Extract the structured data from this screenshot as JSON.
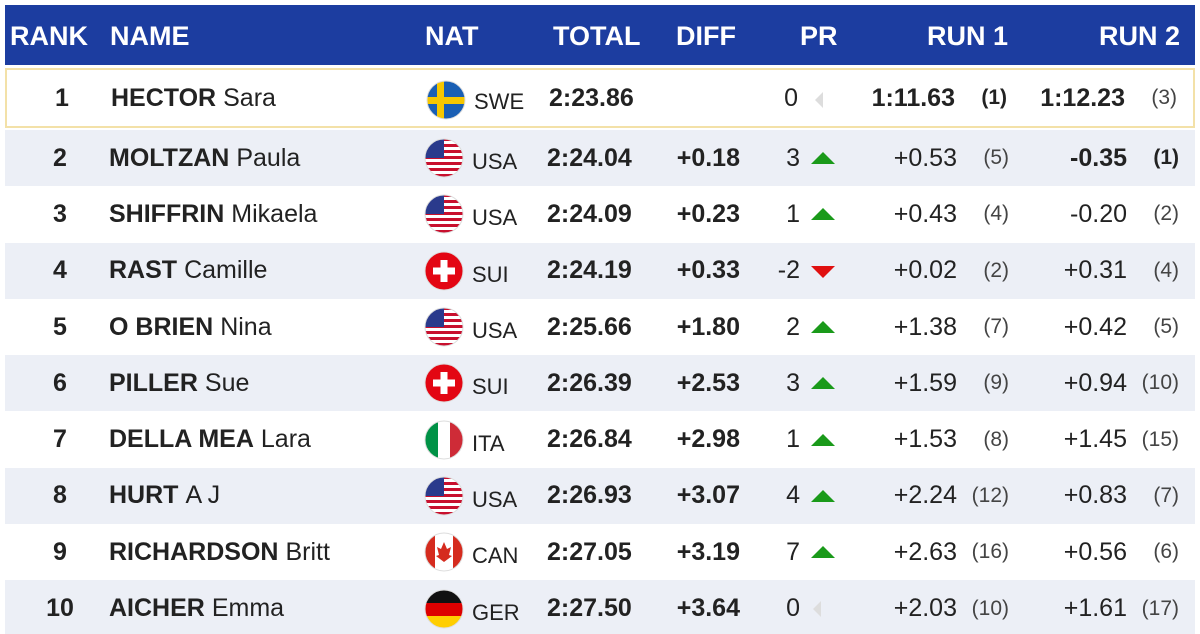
{
  "header": [
    "RANK",
    "NAME",
    "NAT",
    "TOTAL",
    "DIFF",
    "PR",
    "RUN 1",
    "RUN 2"
  ],
  "rows": [
    {
      "rank": 1,
      "surname": "HECTOR",
      "firstname": "Sara",
      "nat": "SWE",
      "total": "2:23.86",
      "pr": "0",
      "run1": {
        "time": "1:11.63",
        "rank": "(1)"
      },
      "run2": {
        "time": "1:12.23",
        "rank": "(3)"
      }
    },
    {
      "rank": 2,
      "surname": "MOLTZAN",
      "firstname": "Paula",
      "nat": "USA",
      "total": "2:24.04",
      "diff": "+0.18",
      "pr": "3",
      "run1": {
        "time": "+0.53",
        "rank": "(5)"
      },
      "run2": {
        "time": "-0.35",
        "rank": "(1)"
      }
    },
    {
      "rank": 3,
      "surname": "SHIFFRIN",
      "firstname": "Mikaela",
      "nat": "USA",
      "total": "2:24.09",
      "diff": "+0.23",
      "pr": "1",
      "run1": {
        "time": "+0.43",
        "rank": "(4)"
      },
      "run2": {
        "time": "-0.20",
        "rank": "(2)"
      }
    },
    {
      "rank": 4,
      "surname": "RAST",
      "firstname": "Camille",
      "nat": "SUI",
      "total": "2:24.19",
      "diff": "+0.33",
      "pr": "-2",
      "run1": {
        "time": "+0.02",
        "rank": "(2)"
      },
      "run2": {
        "time": "+0.31",
        "rank": "(4)"
      }
    },
    {
      "rank": 5,
      "surname": "O BRIEN",
      "firstname": "Nina",
      "nat": "USA",
      "total": "2:25.66",
      "diff": "+1.80",
      "pr": "2",
      "run1": {
        "time": "+1.38",
        "rank": "(7)"
      },
      "run2": {
        "time": "+0.42",
        "rank": "(5)"
      }
    },
    {
      "rank": 6,
      "surname": "PILLER",
      "firstname": "Sue",
      "nat": "SUI",
      "total": "2:26.39",
      "diff": "+2.53",
      "pr": "3",
      "run1": {
        "time": "+1.59",
        "rank": "(9)"
      },
      "run2": {
        "time": "+0.94",
        "rank": "(10)"
      }
    },
    {
      "rank": 7,
      "surname": "DELLA MEA",
      "firstname": "Lara",
      "nat": "ITA",
      "total": "2:26.84",
      "diff": "+2.98",
      "pr": "1",
      "run1": {
        "time": "+1.53",
        "rank": "(8)"
      },
      "run2": {
        "time": "+1.45",
        "rank": "(15)"
      }
    },
    {
      "rank": 8,
      "surname": "HURT",
      "firstname": "A J",
      "nat": "USA",
      "total": "2:26.93",
      "diff": "+3.07",
      "pr": "4",
      "run1": {
        "time": "+2.24",
        "rank": "(12)"
      },
      "run2": {
        "time": "+0.83",
        "rank": "(7)"
      }
    },
    {
      "rank": 9,
      "surname": "RICHARDSON",
      "firstname": "Britt",
      "nat": "CAN",
      "total": "2:27.05",
      "diff": "+3.19",
      "pr": "7",
      "run1": {
        "time": "+2.63",
        "rank": "(16)"
      },
      "run2": {
        "time": "+0.56",
        "rank": "(6)"
      }
    },
    {
      "rank": 10,
      "surname": "AICHER",
      "firstname": "Emma",
      "nat": "GER",
      "total": "2:27.50",
      "diff": "+3.64",
      "pr": "0",
      "run1": {
        "time": "+2.03",
        "rank": "(10)"
      },
      "run2": {
        "time": "+1.61",
        "rank": "(17)"
      }
    }
  ]
}
